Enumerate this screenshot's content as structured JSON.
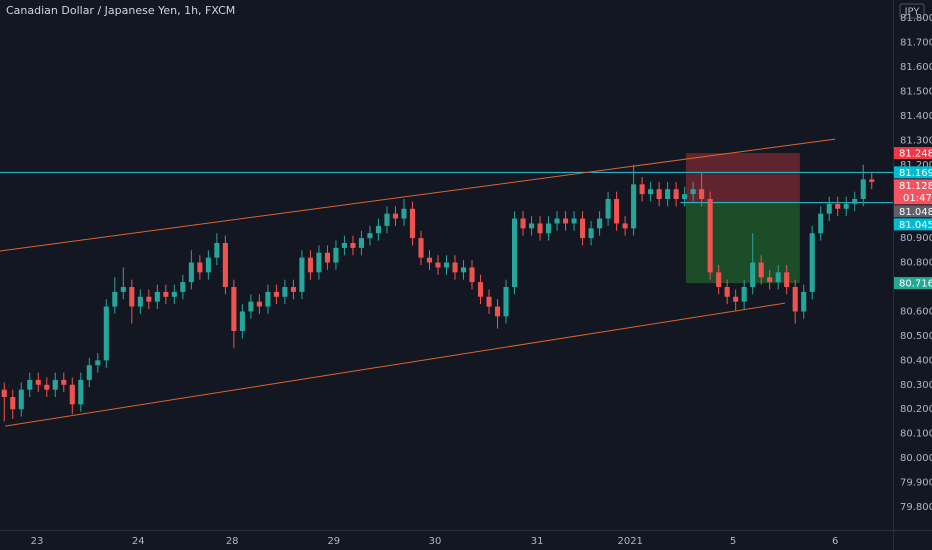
{
  "chart_data": {
    "type": "candlestick",
    "title": "Canadian Dollar / Japanese Yen, 1h, FXCM",
    "currency": "JPY",
    "up_color": "#26a69a",
    "down_color": "#ef5350",
    "grid": false,
    "x": [
      1,
      3,
      5,
      7,
      9,
      11,
      13,
      15,
      17,
      19,
      21,
      23,
      25,
      27,
      29,
      31,
      33,
      35,
      37,
      39,
      41,
      43,
      45,
      47,
      49,
      51,
      53,
      55,
      57,
      59,
      61,
      63,
      65,
      67,
      69,
      71,
      73,
      75,
      77,
      79,
      81,
      83,
      85,
      87,
      89,
      91,
      93,
      95,
      97,
      99,
      101,
      103,
      105,
      107,
      109,
      111,
      113,
      115,
      117,
      119,
      121,
      123,
      125,
      127,
      129,
      131,
      133,
      135,
      137,
      139,
      141,
      143,
      145,
      147,
      149,
      151,
      153,
      155,
      157,
      159,
      161,
      163,
      165,
      167,
      169,
      171,
      173,
      175,
      177,
      179,
      181,
      183,
      185,
      187,
      189,
      191,
      193,
      195,
      197,
      199,
      201,
      203,
      205
    ],
    "open": [
      80.28,
      80.25,
      80.2,
      80.28,
      80.32,
      80.3,
      80.28,
      80.32,
      80.3,
      80.22,
      80.32,
      80.38,
      80.4,
      80.62,
      80.68,
      80.7,
      80.62,
      80.66,
      80.64,
      80.68,
      80.66,
      80.68,
      80.72,
      80.8,
      80.76,
      80.82,
      80.88,
      80.7,
      80.52,
      80.6,
      80.64,
      80.62,
      80.68,
      80.66,
      80.7,
      80.68,
      80.82,
      80.76,
      80.84,
      80.8,
      80.86,
      80.88,
      80.86,
      80.9,
      80.92,
      80.95,
      81.0,
      80.98,
      81.02,
      80.9,
      80.82,
      80.8,
      80.78,
      80.8,
      80.76,
      80.78,
      80.72,
      80.66,
      80.62,
      80.58,
      80.7,
      80.98,
      80.94,
      80.96,
      80.92,
      80.96,
      80.98,
      80.96,
      80.98,
      80.9,
      80.94,
      80.98,
      81.06,
      80.96,
      80.94,
      81.12,
      81.08,
      81.1,
      81.06,
      81.1,
      81.06,
      81.08,
      81.1,
      81.06,
      80.76,
      80.7,
      80.66,
      80.64,
      80.7,
      80.8,
      80.74,
      80.72,
      80.76,
      80.7,
      80.6,
      80.68,
      80.92,
      81.0,
      81.04,
      81.02,
      81.04,
      81.06,
      81.14
    ],
    "high": [
      80.31,
      80.28,
      80.31,
      80.35,
      80.35,
      80.33,
      80.35,
      80.35,
      80.33,
      80.35,
      80.41,
      80.43,
      80.65,
      80.74,
      80.78,
      80.73,
      80.69,
      80.69,
      80.71,
      80.71,
      80.71,
      80.75,
      80.85,
      80.83,
      80.85,
      80.92,
      80.91,
      80.73,
      80.63,
      80.67,
      80.67,
      80.71,
      80.71,
      80.73,
      80.73,
      80.85,
      80.85,
      80.87,
      80.87,
      80.89,
      80.91,
      80.91,
      80.93,
      80.95,
      80.98,
      81.03,
      81.03,
      81.06,
      81.05,
      80.93,
      80.85,
      80.83,
      80.83,
      80.83,
      80.81,
      80.81,
      80.75,
      80.69,
      80.65,
      80.73,
      81.01,
      81.01,
      80.99,
      80.99,
      80.99,
      81.01,
      81.01,
      81.01,
      81.01,
      80.97,
      81.01,
      81.09,
      81.09,
      80.99,
      81.2,
      81.15,
      81.13,
      81.13,
      81.13,
      81.13,
      81.11,
      81.13,
      81.17,
      81.09,
      80.79,
      80.73,
      80.69,
      80.73,
      80.92,
      80.83,
      80.77,
      80.79,
      80.79,
      80.73,
      80.71,
      80.95,
      81.03,
      81.07,
      81.07,
      81.07,
      81.09,
      81.2,
      81.17
    ],
    "low": [
      80.15,
      80.16,
      80.17,
      80.25,
      80.27,
      80.25,
      80.25,
      80.27,
      80.18,
      80.19,
      80.29,
      80.35,
      80.37,
      80.59,
      80.65,
      80.55,
      80.59,
      80.61,
      80.61,
      80.63,
      80.63,
      80.65,
      80.69,
      80.73,
      80.73,
      80.79,
      80.67,
      80.45,
      80.49,
      80.57,
      80.59,
      80.59,
      80.63,
      80.63,
      80.65,
      80.65,
      80.73,
      80.73,
      80.77,
      80.77,
      80.83,
      80.83,
      80.83,
      80.87,
      80.89,
      80.92,
      80.95,
      80.95,
      80.87,
      80.79,
      80.77,
      80.75,
      80.75,
      80.73,
      80.73,
      80.69,
      80.63,
      80.59,
      80.53,
      80.55,
      80.67,
      80.91,
      80.91,
      80.89,
      80.89,
      80.93,
      80.93,
      80.93,
      80.87,
      80.87,
      80.91,
      80.95,
      80.93,
      80.91,
      80.91,
      81.05,
      81.05,
      81.03,
      81.03,
      81.03,
      81.03,
      81.05,
      81.03,
      80.73,
      80.67,
      80.63,
      80.6,
      80.61,
      80.67,
      80.71,
      80.69,
      80.69,
      80.67,
      80.55,
      80.57,
      80.65,
      80.89,
      80.97,
      80.99,
      80.99,
      81.01,
      81.03,
      81.1
    ],
    "close": [
      80.25,
      80.2,
      80.28,
      80.32,
      80.3,
      80.28,
      80.32,
      80.3,
      80.22,
      80.32,
      80.38,
      80.4,
      80.62,
      80.68,
      80.7,
      80.62,
      80.66,
      80.64,
      80.68,
      80.66,
      80.68,
      80.72,
      80.8,
      80.76,
      80.82,
      80.88,
      80.7,
      80.52,
      80.6,
      80.64,
      80.62,
      80.68,
      80.66,
      80.7,
      80.68,
      80.82,
      80.76,
      80.84,
      80.8,
      80.86,
      80.88,
      80.86,
      80.9,
      80.92,
      80.95,
      81.0,
      80.98,
      81.02,
      80.9,
      80.82,
      80.8,
      80.78,
      80.8,
      80.76,
      80.78,
      80.72,
      80.66,
      80.62,
      80.58,
      80.7,
      80.98,
      80.94,
      80.96,
      80.92,
      80.96,
      80.98,
      80.96,
      80.98,
      80.9,
      80.94,
      80.98,
      81.06,
      80.96,
      80.94,
      81.12,
      81.08,
      81.1,
      81.06,
      81.1,
      81.06,
      81.08,
      81.1,
      81.06,
      80.76,
      80.7,
      80.66,
      80.64,
      80.7,
      80.8,
      80.74,
      80.72,
      80.76,
      80.7,
      80.6,
      80.68,
      80.92,
      81.0,
      81.04,
      81.02,
      81.04,
      81.06,
      81.14,
      81.13
    ],
    "xlim": [
      0,
      210
    ],
    "xticks": [
      {
        "value": 8.7,
        "label": "23"
      },
      {
        "value": 32.5,
        "label": "24"
      },
      {
        "value": 54.6,
        "label": "28"
      },
      {
        "value": 78.5,
        "label": "29"
      },
      {
        "value": 102.3,
        "label": "30"
      },
      {
        "value": 126.3,
        "label": "31"
      },
      {
        "value": 148.2,
        "label": "2021"
      },
      {
        "value": 172.4,
        "label": "5"
      },
      {
        "value": 196.4,
        "label": "6"
      }
    ],
    "ylim": [
      79.706,
      81.874
    ],
    "yticks": [
      {
        "value": 81.8,
        "label": "81.800"
      },
      {
        "value": 81.7,
        "label": "81.700"
      },
      {
        "value": 81.6,
        "label": "81.600"
      },
      {
        "value": 81.5,
        "label": "81.500"
      },
      {
        "value": 81.4,
        "label": "81.400"
      },
      {
        "value": 81.3,
        "label": "81.300"
      },
      {
        "value": 81.2,
        "label": "81.200"
      },
      {
        "value": 80.9,
        "label": "80.900"
      },
      {
        "value": 80.8,
        "label": "80.800"
      },
      {
        "value": 80.6,
        "label": "80.600"
      },
      {
        "value": 80.5,
        "label": "80.500"
      },
      {
        "value": 80.4,
        "label": "80.400"
      },
      {
        "value": 80.3,
        "label": "80.300"
      },
      {
        "value": 80.2,
        "label": "80.200"
      },
      {
        "value": 80.1,
        "label": "80.100"
      },
      {
        "value": 80.0,
        "label": "80.000"
      },
      {
        "value": 79.9,
        "label": "79.900"
      },
      {
        "value": 79.8,
        "label": "79.800"
      }
    ],
    "trend_lines": [
      {
        "color": "#e0622d",
        "x": [
          0,
          196.4
        ],
        "y": [
          80.847,
          81.305
        ]
      },
      {
        "color": "#e0622d",
        "x": [
          1.2,
          184.6
        ],
        "y": [
          80.131,
          80.634
        ]
      }
    ],
    "hlines": [
      {
        "color": "#26c6da",
        "value": 81.169,
        "x_from": 0
      },
      {
        "color": "#26c6da",
        "value": 81.045,
        "x_from": 160
      }
    ],
    "position": {
      "x": [
        161.3,
        188.1
      ],
      "entry": 81.045,
      "stop": 81.248,
      "target": 80.716,
      "stop_color": "#7a2a33",
      "target_color": "#1f5a2a"
    },
    "badges": [
      {
        "value": 81.248,
        "color": "#f23645"
      },
      {
        "value": 81.169,
        "color": "#00bcd4"
      },
      {
        "value": 81.128,
        "color": "#f7525f",
        "countdown": "01:47"
      },
      {
        "value": 81.045,
        "color": "#00bcd4"
      },
      {
        "value": 81.048,
        "color": "#5d606b"
      },
      {
        "value": 80.716,
        "color": "#22ab94"
      }
    ]
  }
}
